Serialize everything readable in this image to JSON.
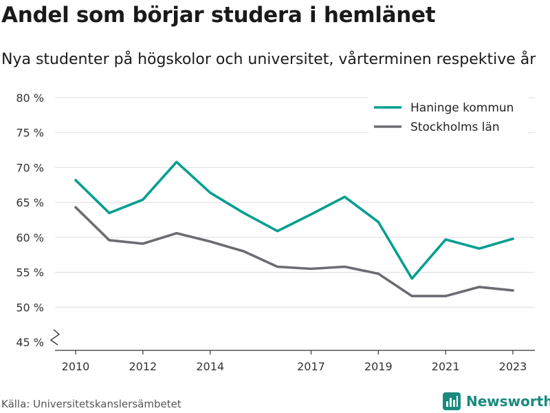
{
  "title": "Andel som börjar studera i hemlänet",
  "subtitle": "Nya studenter på högskolor och universitet, vårterminen respektive år",
  "source": "Källa: Universitetskanslersämbetet",
  "brand": "Newsworthy",
  "colors": {
    "haninge": "#009e8f",
    "stockholm": "#6b6b73",
    "brand": "#1a8a7e"
  },
  "chart_data": {
    "type": "line",
    "title": "Andel som börjar studera i hemlänet",
    "xlabel": "",
    "ylabel": "",
    "ylim": [
      45,
      80
    ],
    "xlim": [
      2010,
      2023
    ],
    "yticks": [
      45,
      50,
      55,
      60,
      65,
      70,
      75,
      80
    ],
    "ytick_labels": [
      "45 %",
      "50 %",
      "55 %",
      "60 %",
      "65 %",
      "70 %",
      "75 %",
      "80 %"
    ],
    "xticks": [
      2010,
      2012,
      2014,
      2017,
      2019,
      2021,
      2023
    ],
    "xtick_labels": [
      "2010",
      "2012",
      "2014",
      "2017",
      "2019",
      "2021",
      "2023"
    ],
    "grid": true,
    "legend_position": "top-right",
    "x": [
      2010,
      2011,
      2012,
      2013,
      2014,
      2015,
      2016,
      2017,
      2018,
      2019,
      2020,
      2021,
      2022,
      2023
    ],
    "series": [
      {
        "name": "Haninge kommun",
        "color": "#009e8f",
        "values": [
          68.2,
          63.5,
          65.4,
          70.8,
          66.4,
          63.5,
          60.9,
          63.3,
          65.8,
          62.2,
          54.1,
          59.7,
          58.4,
          59.8
        ]
      },
      {
        "name": "Stockholms län",
        "color": "#6b6b73",
        "values": [
          64.3,
          59.6,
          59.1,
          60.6,
          59.4,
          58.0,
          55.8,
          55.5,
          55.8,
          54.8,
          51.6,
          51.6,
          52.9,
          52.4
        ]
      }
    ]
  }
}
